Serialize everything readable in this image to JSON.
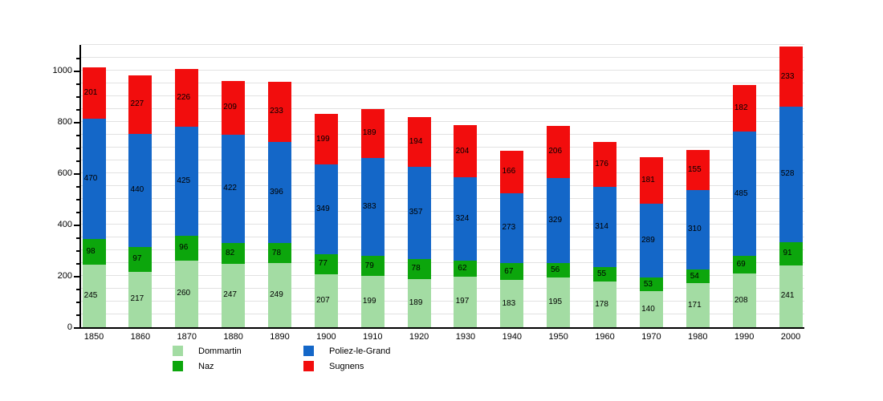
{
  "chart_data": {
    "type": "bar",
    "stacked": true,
    "title": "",
    "xlabel": "",
    "ylabel": "",
    "categories": [
      "1850",
      "1860",
      "1870",
      "1880",
      "1890",
      "1900",
      "1910",
      "1920",
      "1930",
      "1940",
      "1950",
      "1960",
      "1970",
      "1980",
      "1990",
      "2000"
    ],
    "series": [
      {
        "name": "Dommartin",
        "color": "#a3dca3",
        "values": [
          245,
          217,
          260,
          247,
          249,
          207,
          199,
          189,
          197,
          183,
          195,
          178,
          140,
          171,
          208,
          241
        ]
      },
      {
        "name": "Naz",
        "color": "#0ca60c",
        "values": [
          98,
          97,
          96,
          82,
          78,
          77,
          79,
          78,
          62,
          67,
          56,
          55,
          53,
          54,
          69,
          91
        ]
      },
      {
        "name": "Poliez-le-Grand",
        "color": "#1467c8",
        "values": [
          470,
          440,
          425,
          422,
          396,
          349,
          383,
          357,
          324,
          273,
          329,
          314,
          289,
          310,
          485,
          528
        ]
      },
      {
        "name": "Sugnens",
        "color": "#f20d0d",
        "values": [
          201,
          227,
          226,
          209,
          233,
          199,
          189,
          194,
          204,
          166,
          206,
          176,
          181,
          155,
          182,
          233
        ]
      }
    ],
    "ylim": [
      0,
      1100
    ],
    "y_major_ticks": [
      0,
      200,
      400,
      600,
      800,
      1000
    ],
    "y_minor_step": 50,
    "grid": true,
    "grid_color": "#e2e2e2",
    "value_labels": true,
    "legend_position": "bottom"
  },
  "colors": {
    "background": "#ffffff",
    "axis": "#000000",
    "label_text": "#000000"
  }
}
